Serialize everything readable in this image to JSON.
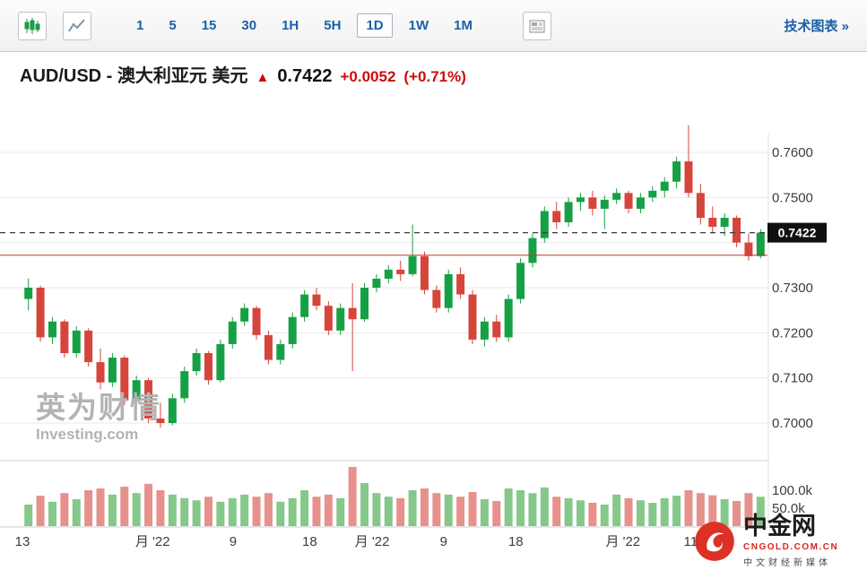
{
  "toolbar": {
    "timeframes": [
      {
        "label": "1"
      },
      {
        "label": "5"
      },
      {
        "label": "15"
      },
      {
        "label": "30"
      },
      {
        "label": "1H"
      },
      {
        "label": "5H"
      },
      {
        "label": "1D",
        "selected": true
      },
      {
        "label": "1W"
      },
      {
        "label": "1M"
      }
    ],
    "tech_chart_link": "技术图表 »"
  },
  "header": {
    "pair": "AUD/USD - 澳大利亚元 美元",
    "arrow": "▲",
    "price": "0.7422",
    "change": "+0.0052",
    "change_pct": "(+0.71%)"
  },
  "watermark": {
    "line1": "英为财情",
    "line2": "Investing.com"
  },
  "site_logo": {
    "name": "中金网",
    "domain": "CNGOLD.COM.CN",
    "tagline": "中文财经新媒体"
  },
  "chart_data": {
    "type": "candlestick",
    "pair": "AUD/USD",
    "interval": "1D",
    "last_price": 0.7422,
    "price_tag": "0.7422",
    "ref_line": 0.7372,
    "y_gridlines": [
      0.76,
      0.75,
      0.74,
      0.73,
      0.72,
      0.71,
      0.7
    ],
    "y_ticks": [
      {
        "label": "0.7600",
        "value": 0.76
      },
      {
        "label": "0.7500",
        "value": 0.75
      },
      {
        "label": "0.7300",
        "value": 0.73
      },
      {
        "label": "0.7200",
        "value": 0.72
      },
      {
        "label": "0.7100",
        "value": 0.71
      },
      {
        "label": "0.7000",
        "value": 0.7
      }
    ],
    "volume_ticks": [
      {
        "label": "100.0k",
        "value": 100
      },
      {
        "label": "50.0k",
        "value": 50
      }
    ],
    "x_ticks": [
      {
        "label": "13",
        "pos": 0.0
      },
      {
        "label": "月 '22",
        "pos": 0.175
      },
      {
        "label": "9",
        "pos": 0.283
      },
      {
        "label": "18",
        "pos": 0.386
      },
      {
        "label": "月 '22",
        "pos": 0.47
      },
      {
        "label": "9",
        "pos": 0.566
      },
      {
        "label": "18",
        "pos": 0.663
      },
      {
        "label": "月 '22",
        "pos": 0.807
      },
      {
        "label": "11",
        "pos": 0.898
      }
    ],
    "ohlc_format": [
      "open",
      "high",
      "low",
      "close"
    ],
    "candles": [
      [
        0.7275,
        0.732,
        0.725,
        0.73
      ],
      [
        0.73,
        0.7305,
        0.718,
        0.719
      ],
      [
        0.719,
        0.7235,
        0.7175,
        0.7225
      ],
      [
        0.7225,
        0.723,
        0.7145,
        0.7155
      ],
      [
        0.7155,
        0.7215,
        0.7145,
        0.7205
      ],
      [
        0.7205,
        0.721,
        0.7125,
        0.7135
      ],
      [
        0.7135,
        0.7165,
        0.7075,
        0.709
      ],
      [
        0.709,
        0.7155,
        0.708,
        0.7145
      ],
      [
        0.7145,
        0.715,
        0.704,
        0.705
      ],
      [
        0.705,
        0.7105,
        0.703,
        0.7095
      ],
      [
        0.7095,
        0.71,
        0.7,
        0.701
      ],
      [
        0.701,
        0.7045,
        0.699,
        0.7
      ],
      [
        0.7,
        0.7065,
        0.6995,
        0.7055
      ],
      [
        0.7055,
        0.7125,
        0.7045,
        0.7115
      ],
      [
        0.7115,
        0.7165,
        0.7105,
        0.7155
      ],
      [
        0.7155,
        0.716,
        0.7085,
        0.7095
      ],
      [
        0.7095,
        0.7185,
        0.709,
        0.7175
      ],
      [
        0.7175,
        0.7235,
        0.7165,
        0.7225
      ],
      [
        0.7225,
        0.7265,
        0.7215,
        0.7255
      ],
      [
        0.7255,
        0.726,
        0.7185,
        0.7195
      ],
      [
        0.7195,
        0.7205,
        0.713,
        0.714
      ],
      [
        0.714,
        0.7185,
        0.713,
        0.7175
      ],
      [
        0.7175,
        0.7245,
        0.7165,
        0.7235
      ],
      [
        0.7235,
        0.7295,
        0.7225,
        0.7285
      ],
      [
        0.7285,
        0.73,
        0.725,
        0.726
      ],
      [
        0.726,
        0.727,
        0.7195,
        0.7205
      ],
      [
        0.7205,
        0.7265,
        0.7195,
        0.7255
      ],
      [
        0.7255,
        0.731,
        0.7115,
        0.723
      ],
      [
        0.723,
        0.731,
        0.7225,
        0.73
      ],
      [
        0.73,
        0.733,
        0.729,
        0.732
      ],
      [
        0.732,
        0.735,
        0.731,
        0.734
      ],
      [
        0.734,
        0.736,
        0.7315,
        0.733
      ],
      [
        0.733,
        0.744,
        0.7325,
        0.737
      ],
      [
        0.737,
        0.738,
        0.7285,
        0.7295
      ],
      [
        0.7295,
        0.7305,
        0.7245,
        0.7255
      ],
      [
        0.7255,
        0.734,
        0.7245,
        0.733
      ],
      [
        0.733,
        0.7345,
        0.7275,
        0.7285
      ],
      [
        0.7285,
        0.7295,
        0.7175,
        0.7185
      ],
      [
        0.7185,
        0.7235,
        0.717,
        0.7225
      ],
      [
        0.7225,
        0.724,
        0.718,
        0.719
      ],
      [
        0.719,
        0.7285,
        0.718,
        0.7275
      ],
      [
        0.7275,
        0.7365,
        0.7265,
        0.7355
      ],
      [
        0.7355,
        0.742,
        0.7345,
        0.741
      ],
      [
        0.741,
        0.748,
        0.74,
        0.747
      ],
      [
        0.747,
        0.749,
        0.743,
        0.7445
      ],
      [
        0.7445,
        0.75,
        0.7435,
        0.749
      ],
      [
        0.749,
        0.751,
        0.747,
        0.75
      ],
      [
        0.75,
        0.7515,
        0.746,
        0.7475
      ],
      [
        0.7475,
        0.7505,
        0.743,
        0.7495
      ],
      [
        0.7495,
        0.752,
        0.7485,
        0.751
      ],
      [
        0.751,
        0.7515,
        0.7465,
        0.7475
      ],
      [
        0.7475,
        0.751,
        0.7465,
        0.75
      ],
      [
        0.75,
        0.7525,
        0.749,
        0.7515
      ],
      [
        0.7515,
        0.7545,
        0.75,
        0.7535
      ],
      [
        0.7535,
        0.759,
        0.752,
        0.758
      ],
      [
        0.758,
        0.766,
        0.75,
        0.751
      ],
      [
        0.751,
        0.753,
        0.744,
        0.7455
      ],
      [
        0.7455,
        0.748,
        0.742,
        0.7435
      ],
      [
        0.7435,
        0.7465,
        0.7415,
        0.7455
      ],
      [
        0.7455,
        0.746,
        0.739,
        0.74
      ],
      [
        0.74,
        0.742,
        0.736,
        0.737
      ],
      [
        0.737,
        0.743,
        0.7365,
        0.7422
      ]
    ],
    "volumes_k": [
      60,
      85,
      68,
      92,
      75,
      100,
      105,
      88,
      110,
      92,
      118,
      100,
      88,
      78,
      72,
      82,
      68,
      78,
      88,
      82,
      92,
      68,
      78,
      100,
      82,
      88,
      78,
      165,
      120,
      92,
      82,
      78,
      100,
      105,
      92,
      88,
      82,
      95,
      75,
      70,
      105,
      100,
      92,
      108,
      82,
      78,
      72,
      65,
      60,
      88,
      78,
      72,
      65,
      78,
      85,
      100,
      92,
      86,
      75,
      70,
      92,
      82
    ],
    "colors": {
      "up": "#16a045",
      "down": "#d6453c",
      "vol_up": "#85c88a",
      "vol_down": "#e6918c",
      "ref_line": "#c0392b",
      "price_line": "#3a3a3a",
      "grid": "#e9e9e9"
    }
  }
}
